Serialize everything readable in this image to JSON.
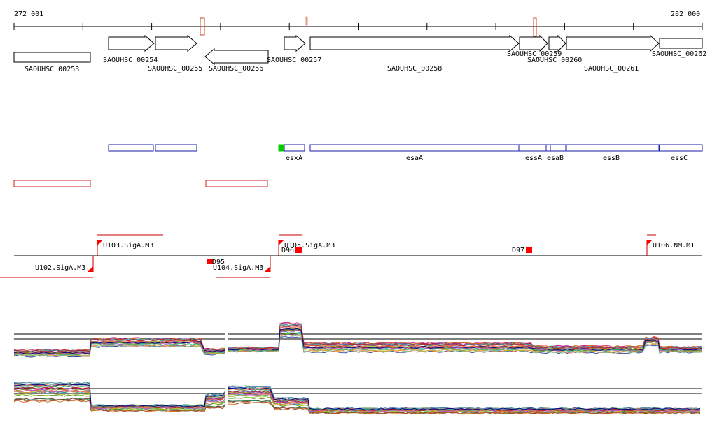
{
  "ruler": {
    "start_label": "272 001",
    "end_label": "282 000"
  },
  "genes": [
    {
      "id": "SAOUHSC_00253",
      "label": "SAOUHSC_00253"
    },
    {
      "id": "SAOUHSC_00254",
      "label": "SAOUHSC_00254"
    },
    {
      "id": "SAOUHSC_00255",
      "label": "SAOUHSC_00255"
    },
    {
      "id": "SAOUHSC_00256",
      "label": "SAOUHSC_00256"
    },
    {
      "id": "SAOUHSC_00257",
      "label": "SAOUHSC_00257"
    },
    {
      "id": "SAOUHSC_00258",
      "label": "SAOUHSC_00258"
    },
    {
      "id": "SAOUHSC_00259",
      "label": "SAOUHSC_00259"
    },
    {
      "id": "SAOUHSC_00260",
      "label": "SAOUHSC_00260"
    },
    {
      "id": "SAOUHSC_00261",
      "label": "SAOUHSC_00261"
    },
    {
      "id": "SAOUHSC_00262",
      "label": "SAOUHSC_00262"
    }
  ],
  "gene_names": [
    {
      "id": "esxA",
      "label": "esxA"
    },
    {
      "id": "esaA",
      "label": "esaA"
    },
    {
      "id": "essA",
      "label": "essA"
    },
    {
      "id": "esaB",
      "label": "esaB"
    },
    {
      "id": "essB",
      "label": "essB"
    },
    {
      "id": "essC",
      "label": "essC"
    }
  ],
  "promoters": [
    {
      "id": "U102",
      "label": "U102.SigA.M3"
    },
    {
      "id": "U103",
      "label": "U103.SigA.M3"
    },
    {
      "id": "U104",
      "label": "U104.SigA.M3"
    },
    {
      "id": "U105",
      "label": "U105.SigA.M3"
    },
    {
      "id": "U106",
      "label": "U106.NM.M1"
    }
  ],
  "terminators": [
    {
      "id": "D95",
      "label": "D95"
    },
    {
      "id": "D96",
      "label": "D96"
    },
    {
      "id": "D97",
      "label": "D97"
    }
  ],
  "colors": {
    "gene_outline": "#000000",
    "annotation_box": "#1a1aa6",
    "antisense_box": "#cc2222",
    "marker": "#ff0000",
    "highlight": "#00cc00"
  }
}
